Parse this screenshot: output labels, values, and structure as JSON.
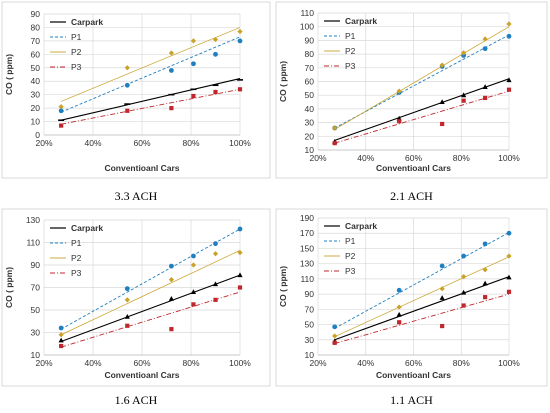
{
  "chart_data": [
    {
      "type": "scatter",
      "title": "3.3 ACH",
      "xlabel": "Conventioanl Cars",
      "ylabel": "CO  ( ppm)",
      "xlim": [
        20,
        100
      ],
      "ylim": [
        0,
        90
      ],
      "x_ticks": [
        20,
        40,
        60,
        80,
        100
      ],
      "y_ticks": [
        0,
        10,
        20,
        30,
        40,
        50,
        60,
        70,
        80,
        90
      ],
      "grid": true,
      "legend_position": "top-left",
      "series": [
        {
          "name": "Carpark",
          "color": "#000000",
          "marker": "dash",
          "line": "solid",
          "x": [
            27,
            54,
            72,
            81,
            90,
            100
          ],
          "y": [
            11,
            23,
            30,
            34,
            37,
            41
          ],
          "trend": [
            [
              27,
              11
            ],
            [
              100,
              42
            ]
          ]
        },
        {
          "name": "P1",
          "color": "#1f7fc1",
          "marker": "circle",
          "line": "dash",
          "x": [
            27,
            54,
            72,
            81,
            90,
            100
          ],
          "y": [
            18,
            37,
            48,
            53,
            60,
            70
          ],
          "trend": [
            [
              27,
              17
            ],
            [
              100,
              73
            ]
          ]
        },
        {
          "name": "P2",
          "color": "#c9a227",
          "marker": "diamond",
          "line": "solid-thin",
          "x": [
            27,
            54,
            72,
            81,
            90,
            100
          ],
          "y": [
            21,
            50,
            61,
            70,
            71,
            77
          ],
          "trend": [
            [
              27,
              25
            ],
            [
              100,
              80
            ]
          ]
        },
        {
          "name": "P3",
          "color": "#c0272d",
          "marker": "square",
          "line": "dashdot",
          "x": [
            27,
            54,
            72,
            81,
            90,
            100
          ],
          "y": [
            7,
            18,
            20,
            29,
            32,
            34
          ],
          "trend": [
            [
              27,
              8
            ],
            [
              100,
              34
            ]
          ]
        }
      ]
    },
    {
      "type": "scatter",
      "title": "2.1 ACH",
      "xlabel": "Conventioanl Cars",
      "ylabel": "CO  ( ppm)",
      "xlim": [
        20,
        100
      ],
      "ylim": [
        10,
        110
      ],
      "x_ticks": [
        20,
        40,
        60,
        80,
        100
      ],
      "y_ticks": [
        10,
        20,
        30,
        40,
        50,
        60,
        70,
        80,
        90,
        100,
        110
      ],
      "grid": true,
      "legend_position": "top-left",
      "series": [
        {
          "name": "Carpark",
          "color": "#000000",
          "marker": "triangle",
          "line": "solid",
          "x": [
            27,
            54,
            72,
            81,
            90,
            100
          ],
          "y": [
            16,
            33,
            45,
            50,
            56,
            61
          ],
          "trend": [
            [
              27,
              17
            ],
            [
              100,
              62
            ]
          ]
        },
        {
          "name": "P1",
          "color": "#1f7fc1",
          "marker": "circle",
          "line": "dash",
          "x": [
            27,
            54,
            72,
            81,
            90,
            100
          ],
          "y": [
            26,
            52,
            71,
            79,
            84,
            93
          ],
          "trend": [
            [
              27,
              26
            ],
            [
              100,
              94
            ]
          ]
        },
        {
          "name": "P2",
          "color": "#c9a227",
          "marker": "diamond",
          "line": "solid-thin",
          "x": [
            27,
            54,
            72,
            81,
            90,
            100
          ],
          "y": [
            26,
            53,
            72,
            81,
            91,
            102
          ],
          "trend": [
            [
              27,
              25
            ],
            [
              100,
              100
            ]
          ]
        },
        {
          "name": "P3",
          "color": "#c0272d",
          "marker": "square",
          "line": "dashdot",
          "x": [
            27,
            54,
            72,
            81,
            90,
            100
          ],
          "y": [
            15,
            31,
            29,
            46,
            48,
            54
          ],
          "trend": [
            [
              27,
              15
            ],
            [
              100,
              53
            ]
          ]
        }
      ]
    },
    {
      "type": "scatter",
      "title": "1.6 ACH",
      "xlabel": "Conventioanl Cars",
      "ylabel": "CO  ( ppm)",
      "xlim": [
        20,
        100
      ],
      "ylim": [
        10,
        130
      ],
      "x_ticks": [
        20,
        40,
        60,
        80,
        100
      ],
      "y_ticks": [
        10,
        30,
        50,
        70,
        90,
        110,
        130
      ],
      "grid": true,
      "legend_position": "top-left",
      "series": [
        {
          "name": "Carpark",
          "color": "#000000",
          "marker": "triangle",
          "line": "solid",
          "x": [
            27,
            54,
            72,
            81,
            90,
            100
          ],
          "y": [
            23,
            44,
            60,
            66,
            73,
            81
          ],
          "trend": [
            [
              27,
              22
            ],
            [
              100,
              81
            ]
          ]
        },
        {
          "name": "P1",
          "color": "#1f7fc1",
          "marker": "circle",
          "line": "dash",
          "x": [
            27,
            54,
            72,
            81,
            90,
            100
          ],
          "y": [
            34,
            69,
            89,
            98,
            109,
            122
          ],
          "trend": [
            [
              27,
              33
            ],
            [
              100,
              122
            ]
          ]
        },
        {
          "name": "P2",
          "color": "#c9a227",
          "marker": "diamond",
          "line": "solid-thin",
          "x": [
            27,
            54,
            72,
            81,
            90,
            100
          ],
          "y": [
            28,
            59,
            77,
            90,
            100,
            101
          ],
          "trend": [
            [
              27,
              28
            ],
            [
              100,
              103
            ]
          ]
        },
        {
          "name": "P3",
          "color": "#c0272d",
          "marker": "square",
          "line": "dashdot",
          "x": [
            27,
            54,
            72,
            81,
            90,
            100
          ],
          "y": [
            18,
            36,
            33,
            55,
            59,
            70
          ],
          "trend": [
            [
              27,
              17
            ],
            [
              100,
              66
            ]
          ]
        }
      ]
    },
    {
      "type": "scatter",
      "title": "1.1 ACH",
      "xlabel": "Conventioanl Cars",
      "ylabel": "CO  ( ppm)",
      "xlim": [
        20,
        100
      ],
      "ylim": [
        10,
        190
      ],
      "x_ticks": [
        20,
        40,
        60,
        80,
        100
      ],
      "y_ticks": [
        10,
        30,
        50,
        70,
        90,
        110,
        130,
        150,
        170,
        190
      ],
      "grid": true,
      "legend_position": "top-left",
      "series": [
        {
          "name": "Carpark",
          "color": "#000000",
          "marker": "triangle",
          "line": "solid",
          "x": [
            27,
            54,
            72,
            81,
            90,
            100
          ],
          "y": [
            28,
            63,
            85,
            92,
            104,
            112
          ],
          "trend": [
            [
              27,
              30
            ],
            [
              100,
              113
            ]
          ]
        },
        {
          "name": "P1",
          "color": "#1f7fc1",
          "marker": "circle",
          "line": "dash",
          "x": [
            27,
            54,
            72,
            81,
            90,
            100
          ],
          "y": [
            47,
            95,
            127,
            140,
            156,
            170
          ],
          "trend": [
            [
              27,
              45
            ],
            [
              100,
              171
            ]
          ]
        },
        {
          "name": "P2",
          "color": "#c9a227",
          "marker": "diamond",
          "line": "solid-thin",
          "x": [
            27,
            54,
            72,
            81,
            90,
            100
          ],
          "y": [
            35,
            73,
            97,
            113,
            122,
            140
          ],
          "trend": [
            [
              27,
              34
            ],
            [
              100,
              139
            ]
          ]
        },
        {
          "name": "P3",
          "color": "#c0272d",
          "marker": "square",
          "line": "dashdot",
          "x": [
            27,
            54,
            72,
            81,
            90,
            100
          ],
          "y": [
            26,
            53,
            48,
            75,
            86,
            93
          ],
          "trend": [
            [
              27,
              25
            ],
            [
              100,
              90
            ]
          ]
        }
      ]
    }
  ]
}
